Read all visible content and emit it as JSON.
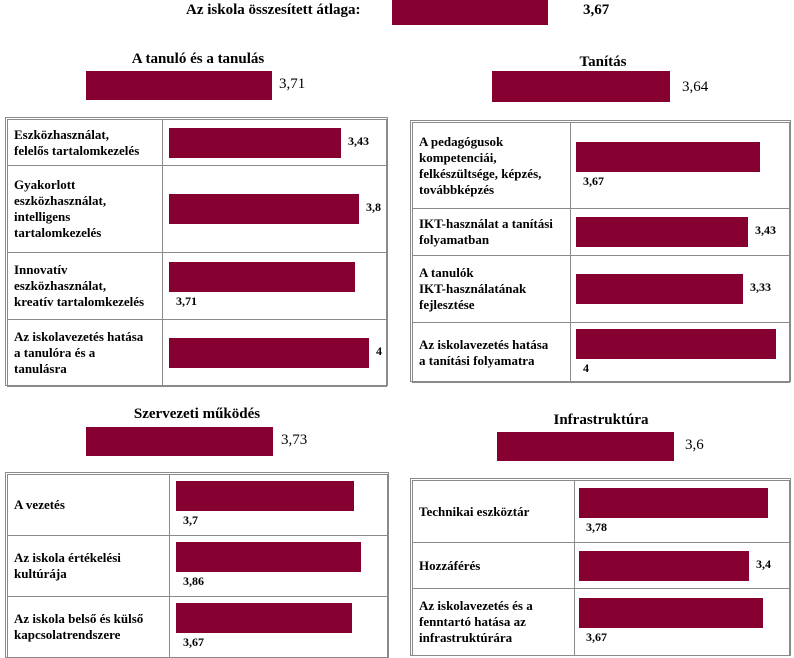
{
  "overall": {
    "label": "Az iskola összesített átlaga:",
    "value": 3.67,
    "value_label": "3,67"
  },
  "colors": {
    "bar": "#850030",
    "border": "#8a8a8a"
  },
  "chart_data": [
    {
      "type": "bar",
      "title": "A tanuló és a tanulás",
      "average": 3.71,
      "average_label": "3,71",
      "categories": [
        "Eszközhasználat, felelős tartalomkezelés",
        "Gyakorlott eszközhasználat, intelligens tartalomkezelés",
        "Innovatív eszközhasználat, kreatív tartalomkezelés",
        "Az iskolavezetés hatása a tanulóra és a tanulásra"
      ],
      "label_lines": [
        [
          "Eszközhasználat,",
          "felelős tartalomkezelés"
        ],
        [
          "Gyakorlott",
          "eszközhasználat,",
          "intelligens",
          "tartalomkezelés"
        ],
        [
          "Innovatív",
          "eszközhasználat,",
          "kreatív tartalomkezelés"
        ],
        [
          "Az iskolavezetés hatása",
          "a tanulóra és a",
          "tanulásra"
        ]
      ],
      "values": [
        3.43,
        3.8,
        3.71,
        4
      ],
      "value_labels": [
        "3,43",
        "3,8",
        "3,71",
        "4"
      ],
      "label_position": [
        "right",
        "right",
        "below",
        "right"
      ],
      "xlim": [
        0,
        4
      ]
    },
    {
      "type": "bar",
      "title": "Tanítás",
      "average": 3.64,
      "average_label": "3,64",
      "categories": [
        "A pedagógusok kompetenciái, felkészültsége, képzés, továbbképzés",
        "IKT-használat a tanítási folyamatban",
        "A tanulók IKT-használatának fejlesztése",
        "Az iskolavezetés hatása a tanítási folyamatra"
      ],
      "label_lines": [
        [
          "A pedagógusok",
          "kompetenciái,",
          "felkészültsége, képzés,",
          "továbbképzés"
        ],
        [
          "IKT-használat a tanítási",
          "folyamatban"
        ],
        [
          "A tanulók",
          "IKT-használatának",
          "fejlesztése"
        ],
        [
          "Az iskolavezetés hatása",
          "a tanítási folyamatra"
        ]
      ],
      "values": [
        3.67,
        3.43,
        3.33,
        4
      ],
      "value_labels": [
        "3,67",
        "3,43",
        "3,33",
        "4"
      ],
      "label_position": [
        "below",
        "right",
        "right",
        "below"
      ],
      "xlim": [
        0,
        4
      ]
    },
    {
      "type": "bar",
      "title": "Szervezeti működés",
      "average": 3.73,
      "average_label": "3,73",
      "categories": [
        "A vezetés",
        "Az iskola értékelési kultúrája",
        "Az iskola belső és külső kapcsolatrendszere"
      ],
      "label_lines": [
        [
          "A vezetés"
        ],
        [
          "Az iskola értékelési",
          "kultúrája"
        ],
        [
          "Az iskola belső és külső",
          "kapcsolatrendszere"
        ]
      ],
      "values": [
        3.7,
        3.86,
        3.67
      ],
      "value_labels": [
        "3,7",
        "3,86",
        "3,67"
      ],
      "label_position": [
        "below",
        "below",
        "below"
      ],
      "xlim": [
        0,
        4
      ]
    },
    {
      "type": "bar",
      "title": "Infrastruktúra",
      "average": 3.6,
      "average_label": "3,6",
      "categories": [
        "Technikai eszköztár",
        "Hozzáférés",
        "Az iskolavezetés és a fenntartó hatása az infrastruktúrára"
      ],
      "label_lines": [
        [
          "Technikai eszköztár"
        ],
        [
          "Hozzáférés"
        ],
        [
          "Az iskolavezetés és a",
          "fenntartó hatása az",
          "infrastruktúrára"
        ]
      ],
      "values": [
        3.78,
        3.4,
        3.67
      ],
      "value_labels": [
        "3,78",
        "3,4",
        "3,67"
      ],
      "label_position": [
        "below",
        "right",
        "below"
      ],
      "xlim": [
        0,
        4
      ]
    }
  ]
}
